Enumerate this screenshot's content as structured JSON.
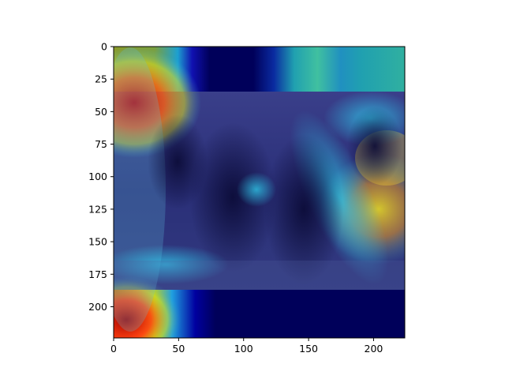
{
  "figure": {
    "description_free": true
  },
  "axes": {
    "x_ticks": [
      "0",
      "50",
      "100",
      "150",
      "200"
    ],
    "y_ticks": [
      "0",
      "25",
      "50",
      "75",
      "100",
      "125",
      "150",
      "175",
      "200"
    ],
    "x_range": [
      0,
      224
    ],
    "y_range": [
      0,
      224
    ],
    "y_inverted": true
  },
  "colors": {
    "colormap": "jet",
    "overlay_low": "#00005a",
    "overlay_high": "#a00000"
  }
}
